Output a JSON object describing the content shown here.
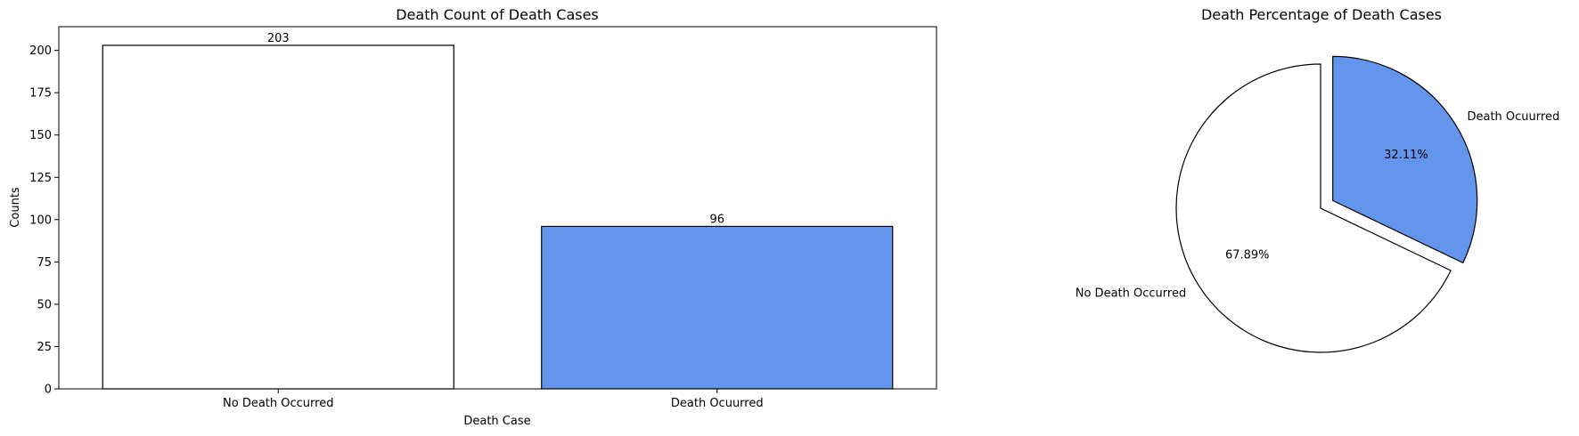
{
  "colors": {
    "no_death": "#ffffff",
    "death": "#6495ed",
    "edge": "#000000"
  },
  "chart_data": [
    {
      "type": "bar",
      "title": "Death Count of Death Cases",
      "xlabel": "Death Case",
      "ylabel": "Counts",
      "categories": [
        "No Death Occurred",
        "Death Ocuurred"
      ],
      "values": [
        203,
        96
      ],
      "data_labels": [
        "203",
        "96"
      ],
      "ylim": [
        0,
        214
      ],
      "yticks": [
        0,
        25,
        50,
        75,
        100,
        125,
        150,
        175,
        200
      ],
      "ytick_labels": [
        "0",
        "25",
        "50",
        "75",
        "100",
        "125",
        "150",
        "175",
        "200"
      ],
      "bar_colors": [
        "#ffffff",
        "#6495ed"
      ],
      "grid": false
    },
    {
      "type": "pie",
      "title": "Death Percentage of Death Cases",
      "labels": [
        "No Death Occurred",
        "Death Ocuurred"
      ],
      "values": [
        67.89,
        32.11
      ],
      "pct_labels": [
        "67.89%",
        "32.11%"
      ],
      "slice_colors": [
        "#ffffff",
        "#6495ed"
      ],
      "explode": [
        0,
        0.1
      ],
      "start_angle_deg": 90
    }
  ]
}
